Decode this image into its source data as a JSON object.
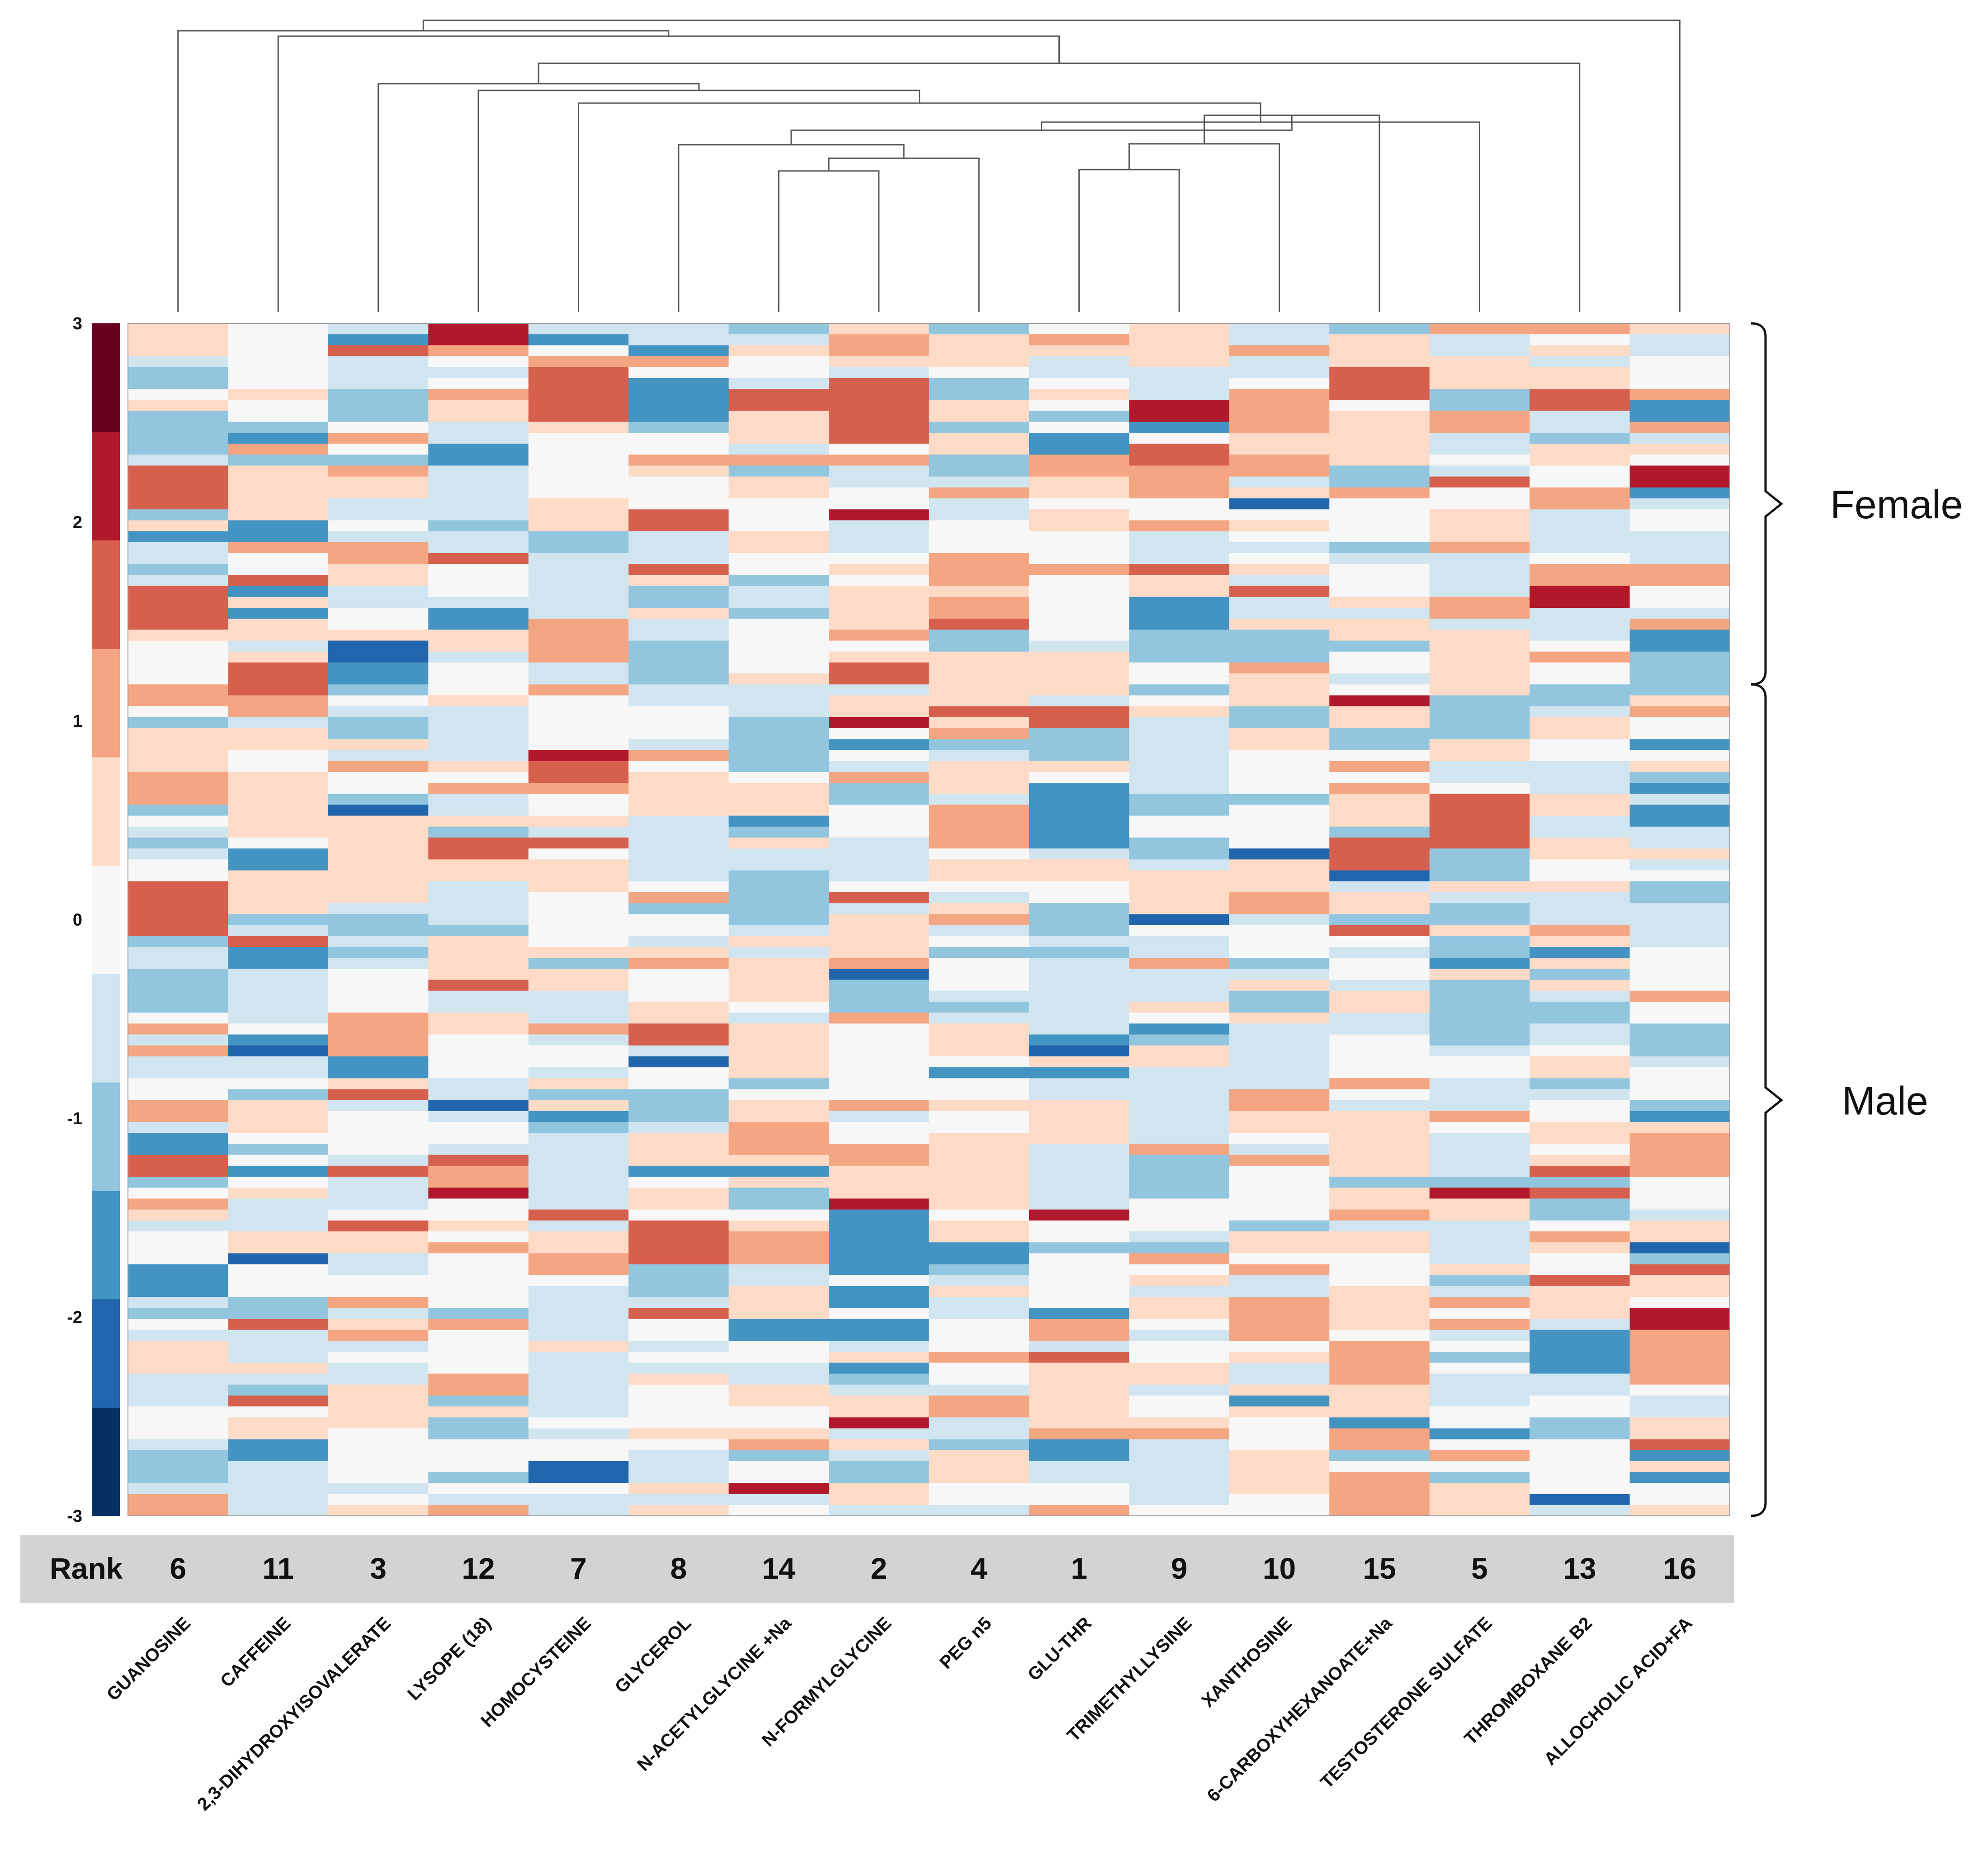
{
  "chart_data": {
    "type": "heatmap",
    "title": "",
    "columns": [
      "GUANOSINE",
      "CAFFEINE",
      "2,3-DIHYDROXYISOVALERATE",
      "LYSOPE (18)",
      "HOMOCYSTEINE",
      "GLYCEROL",
      "N-ACETYLGLYCINE +Na",
      "N-FORMYLGLYCINE",
      "PEG n5",
      "GLU-THR",
      "TRIMETHYLLYSINE",
      "XANTHOSINE",
      "6-CARBOXYHEXANOATE+Na",
      "TESTOSTERONE SULFATE",
      "THROMBOXANE B2",
      "ALLOCHOLIC ACID+FA"
    ],
    "rank_label": "Rank",
    "ranks": [
      "6",
      "11",
      "3",
      "12",
      "7",
      "8",
      "14",
      "2",
      "4",
      "1",
      "9",
      "10",
      "15",
      "5",
      "13",
      "16"
    ],
    "groups": [
      {
        "name": "Female",
        "rows": 33
      },
      {
        "name": "Male",
        "rows": 76
      }
    ],
    "rows": 109,
    "colorbar": {
      "min": -3,
      "max": 3,
      "ticks": [
        "3",
        "2",
        "1",
        "0",
        "-1",
        "-2",
        "-3"
      ],
      "colors": [
        "#053061",
        "#2166ac",
        "#4393c3",
        "#92c5de",
        "#d1e5f0",
        "#f7f7f7",
        "#fddbc7",
        "#f4a582",
        "#d6604d",
        "#b2182b",
        "#67001f"
      ]
    },
    "dendrogram": "hierarchical clustering of the 16 metabolite columns",
    "values": "z-scores in [-3, 3], one per sample row and metabolite column"
  }
}
